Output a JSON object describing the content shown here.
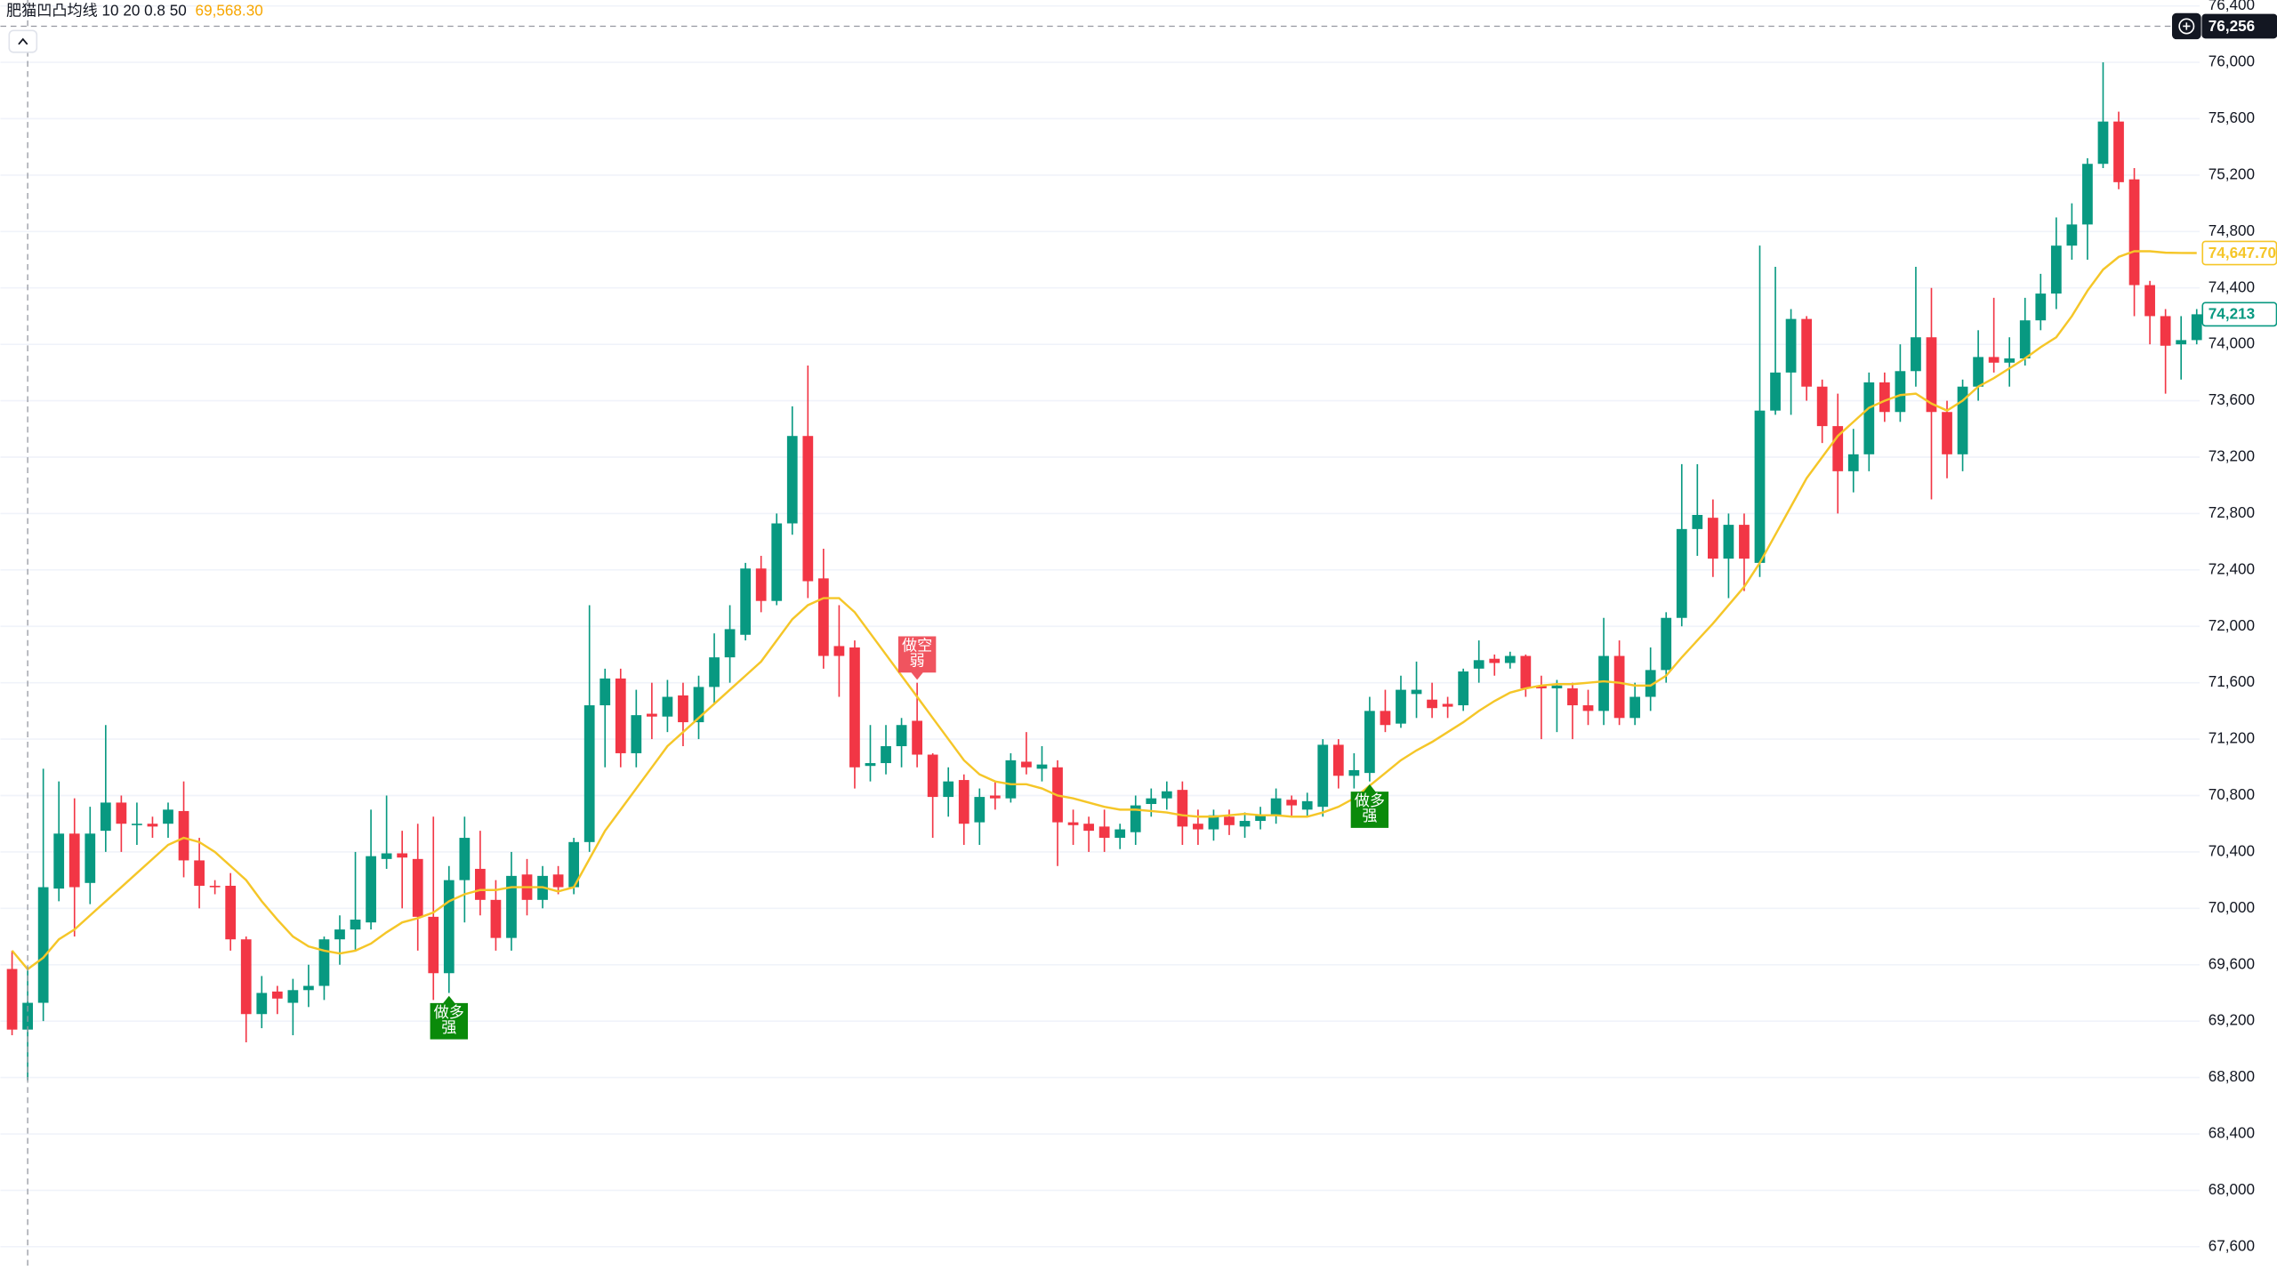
{
  "chart_data": {
    "type": "candlestick",
    "indicator_name": "肥猫凹凸均线 10 20 0.8 50",
    "indicator_value": {
      "value": 69568.3,
      "label": "69,568.30"
    },
    "up_color": "#089981",
    "down_color": "#f23645",
    "open": [
      69570,
      69140,
      69330,
      70140,
      70530,
      70180,
      70550,
      70750,
      70590,
      70600,
      70600,
      70690,
      70340,
      70160,
      70160,
      69780,
      69250,
      69410,
      69330,
      69420,
      69450,
      69780,
      69850,
      69900,
      70350,
      70390,
      70350,
      69940,
      69540,
      70200,
      70280,
      70060,
      69790,
      70240,
      70060,
      70240,
      70150,
      70470,
      71440,
      71630,
      71100,
      71380,
      71360,
      71510,
      71320,
      71570,
      71780,
      71940,
      72410,
      72180,
      72730,
      73350,
      72340,
      71860,
      71850,
      71010,
      71030,
      71150,
      71330,
      71090,
      70790,
      70910,
      70610,
      70800,
      70780,
      71040,
      70990,
      71000,
      70610,
      70600,
      70580,
      70500,
      70540,
      70740,
      70780,
      70840,
      70600,
      70560,
      70650,
      70580,
      70620,
      70660,
      70770,
      70700,
      70720,
      71160,
      70940,
      70960,
      71400,
      71310,
      71520,
      71480,
      71450,
      71440,
      71700,
      71770,
      71740,
      71790,
      71580,
      71560,
      71560,
      71440,
      71400,
      71790,
      71350,
      71500,
      71690,
      72060,
      72690,
      72770,
      72480,
      72720,
      72450,
      73530,
      73800,
      74180,
      73700,
      73420,
      73100,
      73220,
      73730,
      73520,
      73810,
      74050,
      73520,
      73220,
      73700,
      73910,
      73870,
      73900,
      74170,
      74360,
      74700,
      74850,
      75280,
      75580,
      75170,
      74420,
      74200,
      74000,
      74030
    ],
    "high": [
      69700,
      69560,
      70990,
      70900,
      70780,
      70720,
      71300,
      70800,
      70750,
      70650,
      70750,
      70900,
      70500,
      70200,
      70250,
      69800,
      69520,
      69450,
      69500,
      69600,
      69800,
      69950,
      70400,
      70700,
      70800,
      70550,
      70600,
      70650,
      70300,
      70650,
      70550,
      70200,
      70400,
      70350,
      70300,
      70300,
      70500,
      72150,
      71700,
      71700,
      71550,
      71600,
      71620,
      71600,
      71650,
      71950,
      72150,
      72450,
      72500,
      72800,
      73560,
      73850,
      72550,
      72150,
      71900,
      71300,
      71300,
      71350,
      71600,
      71100,
      71000,
      70950,
      70850,
      70900,
      71100,
      71250,
      71150,
      71050,
      70700,
      70650,
      70700,
      70600,
      70800,
      70850,
      70900,
      70900,
      70700,
      70700,
      70700,
      70680,
      70720,
      70850,
      70800,
      70820,
      71200,
      71200,
      71100,
      71500,
      71550,
      71650,
      71750,
      71600,
      71500,
      71700,
      71900,
      71800,
      71820,
      71800,
      71650,
      71620,
      71600,
      71550,
      72060,
      71900,
      71600,
      71850,
      72100,
      73150,
      73150,
      72900,
      72800,
      72800,
      74700,
      74550,
      74250,
      74200,
      73750,
      73650,
      73400,
      73800,
      73800,
      74000,
      74550,
      74400,
      73600,
      73750,
      74100,
      74330,
      74050,
      74330,
      74500,
      74900,
      75000,
      75320,
      76000,
      75650,
      75250,
      74450,
      74250,
      74200,
      74250
    ],
    "low": [
      69100,
      68780,
      69200,
      70050,
      69800,
      70030,
      70400,
      70400,
      70450,
      70500,
      70500,
      70220,
      70000,
      70100,
      69700,
      69050,
      69150,
      69250,
      69100,
      69300,
      69350,
      69600,
      69700,
      69850,
      70280,
      70000,
      69700,
      69350,
      69400,
      69900,
      69950,
      69700,
      69700,
      69950,
      70000,
      70100,
      70100,
      70400,
      71000,
      71000,
      71000,
      71200,
      71250,
      71150,
      71200,
      71450,
      71600,
      71900,
      72100,
      72150,
      72650,
      72200,
      71700,
      71500,
      70850,
      70900,
      70950,
      71000,
      71000,
      70500,
      70650,
      70450,
      70450,
      70700,
      70750,
      70950,
      70900,
      70300,
      70450,
      70400,
      70400,
      70420,
      70450,
      70650,
      70700,
      70450,
      70450,
      70480,
      70520,
      70500,
      70560,
      70600,
      70650,
      70650,
      70650,
      70850,
      70850,
      70900,
      71250,
      71280,
      71350,
      71350,
      71350,
      71400,
      71600,
      71650,
      71700,
      71500,
      71200,
      71250,
      71200,
      71300,
      71300,
      71300,
      71300,
      71400,
      71600,
      72000,
      72500,
      72350,
      72200,
      72250,
      72350,
      73500,
      73500,
      73600,
      73300,
      72800,
      72950,
      73100,
      73450,
      73450,
      73700,
      72900,
      73050,
      73100,
      73600,
      73800,
      73700,
      73850,
      74100,
      74250,
      74600,
      74600,
      75250,
      75100,
      74200,
      74000,
      73650,
      73750,
      74000
    ],
    "close": [
      69140,
      69330,
      70150,
      70530,
      70150,
      70530,
      70750,
      70600,
      70600,
      70580,
      70700,
      70340,
      70160,
      70150,
      69780,
      69250,
      69400,
      69360,
      69420,
      69450,
      69780,
      69850,
      69920,
      70370,
      70390,
      70360,
      69940,
      69540,
      70200,
      70500,
      70060,
      69790,
      70230,
      70060,
      70230,
      70150,
      70470,
      71440,
      71630,
      71100,
      71370,
      71360,
      71500,
      71320,
      71570,
      71780,
      71980,
      72410,
      72180,
      72730,
      73350,
      72320,
      71790,
      71790,
      71000,
      71030,
      71150,
      71300,
      71090,
      70790,
      70900,
      70600,
      70790,
      70780,
      71050,
      71000,
      71020,
      70610,
      70590,
      70550,
      70500,
      70560,
      70730,
      70780,
      70830,
      70580,
      70560,
      70660,
      70590,
      70620,
      70660,
      70780,
      70730,
      70760,
      71160,
      70940,
      70980,
      71400,
      71300,
      71550,
      71550,
      71420,
      71430,
      71680,
      71760,
      71740,
      71790,
      71560,
      71560,
      71580,
      71440,
      71400,
      71790,
      71350,
      71500,
      71690,
      72060,
      72690,
      72790,
      72480,
      72720,
      72480,
      73530,
      73800,
      74180,
      73700,
      73420,
      73100,
      73220,
      73730,
      73520,
      73810,
      74050,
      73520,
      73220,
      73700,
      73910,
      73870,
      73900,
      74170,
      74360,
      74700,
      74850,
      75280,
      75580,
      75150,
      74420,
      74200,
      73990,
      74030,
      74213
    ],
    "ma": {
      "color": "#f5c628",
      "values": [
        69700,
        69568.3,
        69650,
        69780,
        69850,
        69950,
        70050,
        70150,
        70250,
        70350,
        70450,
        70500,
        70470,
        70400,
        70300,
        70200,
        70050,
        69920,
        69800,
        69730,
        69700,
        69680,
        69700,
        69750,
        69830,
        69900,
        69930,
        69970,
        70050,
        70100,
        70130,
        70130,
        70150,
        70150,
        70150,
        70120,
        70150,
        70350,
        70550,
        70700,
        70850,
        71000,
        71150,
        71250,
        71350,
        71450,
        71550,
        71650,
        71750,
        71900,
        72050,
        72150,
        72200,
        72200,
        72100,
        71950,
        71800,
        71650,
        71500,
        71350,
        71200,
        71050,
        70950,
        70900,
        70880,
        70880,
        70850,
        70800,
        70780,
        70750,
        70720,
        70700,
        70700,
        70690,
        70680,
        70660,
        70650,
        70650,
        70660,
        70670,
        70660,
        70660,
        70650,
        70650,
        70680,
        70720,
        70780,
        70870,
        70960,
        71050,
        71120,
        71180,
        71250,
        71320,
        71400,
        71470,
        71530,
        71560,
        71580,
        71590,
        71590,
        71600,
        71610,
        71600,
        71580,
        71580,
        71650,
        71780,
        71900,
        72020,
        72150,
        72280,
        72450,
        72650,
        72850,
        73050,
        73200,
        73350,
        73450,
        73550,
        73600,
        73640,
        73650,
        73580,
        73530,
        73600,
        73700,
        73760,
        73830,
        73900,
        73980,
        74050,
        74200,
        74380,
        74530,
        74620,
        74660,
        74660,
        74650,
        74648,
        74647.7
      ]
    },
    "ylim": [
      67435,
      76442
    ],
    "yticks": [
      {
        "value": 67600,
        "label": "67,600"
      },
      {
        "value": 68000,
        "label": "68,000"
      },
      {
        "value": 68400,
        "label": "68,400"
      },
      {
        "value": 68800,
        "label": "68,800"
      },
      {
        "value": 69200,
        "label": "69,200"
      },
      {
        "value": 69600,
        "label": "69,600"
      },
      {
        "value": 70000,
        "label": "70,000"
      },
      {
        "value": 70400,
        "label": "70,400"
      },
      {
        "value": 70800,
        "label": "70,800"
      },
      {
        "value": 71200,
        "label": "71,200"
      },
      {
        "value": 71600,
        "label": "71,600"
      },
      {
        "value": 72000,
        "label": "72,000"
      },
      {
        "value": 72400,
        "label": "72,400"
      },
      {
        "value": 72800,
        "label": "72,800"
      },
      {
        "value": 73200,
        "label": "73,200"
      },
      {
        "value": 73600,
        "label": "73,600"
      },
      {
        "value": 74000,
        "label": "74,000"
      },
      {
        "value": 74400,
        "label": "74,400"
      },
      {
        "value": 74800,
        "label": "74,800"
      },
      {
        "value": 75200,
        "label": "75,200"
      },
      {
        "value": 75600,
        "label": "75,600"
      },
      {
        "value": 76000,
        "label": "76,000"
      },
      {
        "value": 76400,
        "label": "76,400"
      }
    ],
    "grid": true,
    "ma_last": {
      "value": 74647.7,
      "label": "74,647.70"
    },
    "last_price": {
      "value": 74213,
      "label": "74,213"
    },
    "crosshair": {
      "value": 76256,
      "label": "76,256"
    },
    "signals": [
      {
        "candle": 28,
        "lines": [
          "做多",
          "强"
        ],
        "side": "below",
        "color": "#0a8a0a"
      },
      {
        "candle": 58,
        "lines": [
          "做空",
          "弱"
        ],
        "side": "above",
        "color": "#f0545f"
      },
      {
        "candle": 87,
        "lines": [
          "做多",
          "强"
        ],
        "side": "below",
        "color": "#0a8a0a"
      }
    ]
  }
}
